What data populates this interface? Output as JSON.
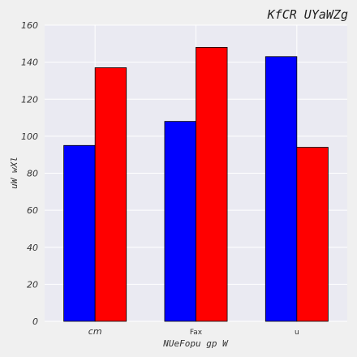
{
  "chart_data": {
    "type": "bar",
    "title": "KfCR UYaWZg",
    "xlabel": "NUeFopu gp W",
    "ylabel": "uW  wXl",
    "categories": [
      "cm",
      "Fax",
      "u"
    ],
    "series": [
      {
        "values": [
          95,
          108,
          143
        ],
        "color": "#0000ff"
      },
      {
        "values": [
          137,
          148,
          94
        ],
        "color": "#ff0000"
      }
    ],
    "ylim": [
      0,
      160
    ],
    "yticks": [
      0,
      20,
      40,
      60,
      80,
      100,
      120,
      140,
      160
    ],
    "grid": true,
    "colors": {
      "plot_background": "#eaeaf2",
      "page_background": "#f0f0f0",
      "grid": "#ffffff",
      "bar_edge": "#000000"
    }
  }
}
